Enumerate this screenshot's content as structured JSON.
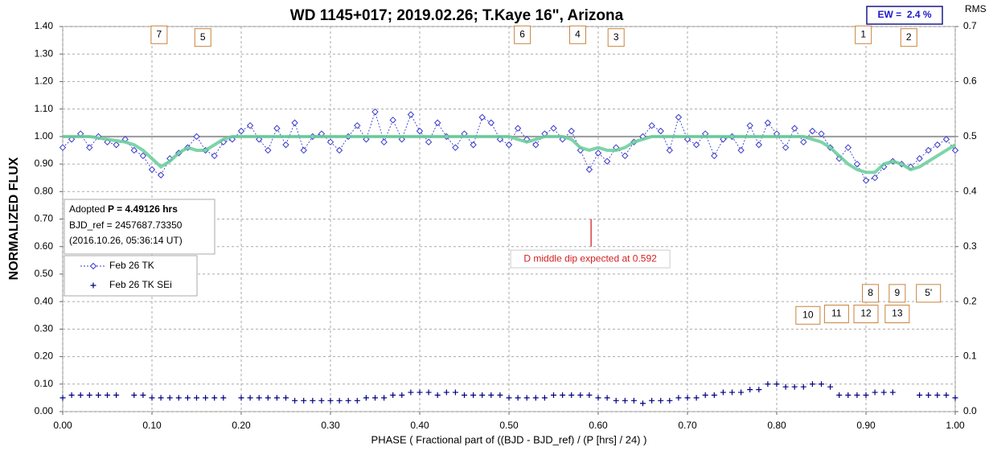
{
  "chart_data": {
    "type": "scatter",
    "title": "WD 1145+017; 2019.02.26; T.Kaye 16\", Arizona",
    "x_label": "PHASE ( Fractional part of ((BJD - BJD_ref) / (P [hrs] / 24) )",
    "y_label": "NORMALIZED FLUX",
    "y2_label": "RMS i",
    "ew_label": "EW =  2.4 %",
    "xlim": [
      0,
      1
    ],
    "xticks": [
      {
        "value": 0,
        "label": "0.00"
      },
      {
        "value": 0.1,
        "label": "0.10"
      },
      {
        "value": 0.2,
        "label": "0.20"
      },
      {
        "value": 0.3,
        "label": "0.30"
      },
      {
        "value": 0.4,
        "label": "0.40"
      },
      {
        "value": 0.5,
        "label": "0.50"
      },
      {
        "value": 0.6,
        "label": "0.60"
      },
      {
        "value": 0.7,
        "label": "0.70"
      },
      {
        "value": 0.8,
        "label": "0.80"
      },
      {
        "value": 0.9,
        "label": "0.90"
      },
      {
        "value": 1,
        "label": "1.00"
      }
    ],
    "ylim": [
      0,
      1.4
    ],
    "yticks": [
      {
        "value": 0,
        "label": "0.00"
      },
      {
        "value": 0.1,
        "label": "0.10"
      },
      {
        "value": 0.2,
        "label": "0.20"
      },
      {
        "value": 0.3,
        "label": "0.30"
      },
      {
        "value": 0.4,
        "label": "0.40"
      },
      {
        "value": 0.5,
        "label": "0.50"
      },
      {
        "value": 0.6,
        "label": "0.60"
      },
      {
        "value": 0.7,
        "label": "0.70"
      },
      {
        "value": 0.8,
        "label": "0.80"
      },
      {
        "value": 0.9,
        "label": "0.90"
      },
      {
        "value": 1,
        "label": "1.00"
      },
      {
        "value": 1.1,
        "label": "1.10"
      },
      {
        "value": 1.2,
        "label": "1.20"
      },
      {
        "value": 1.3,
        "label": "1.30"
      },
      {
        "value": 1.4,
        "label": "1.40"
      }
    ],
    "y2lim": [
      0,
      0.7
    ],
    "y2ticks": [
      {
        "value": 0,
        "label": "0.0"
      },
      0.1,
      0.2,
      0.3,
      0.4,
      0.5,
      0.6,
      0.7
    ],
    "grid": true,
    "reference_line": 1,
    "legend": "left",
    "x": [
      0,
      0.01,
      0.02,
      0.03,
      0.04,
      0.05,
      0.06,
      0.07,
      0.08,
      0.09,
      0.1,
      0.11,
      0.12,
      0.13,
      0.14,
      0.15,
      0.16,
      0.17,
      0.18,
      0.19,
      0.2,
      0.21,
      0.22,
      0.23,
      0.24,
      0.25,
      0.26,
      0.27,
      0.28,
      0.29,
      0.3,
      0.31,
      0.32,
      0.33,
      0.34,
      0.35,
      0.36,
      0.37,
      0.38,
      0.39,
      0.4,
      0.41,
      0.42,
      0.43,
      0.44,
      0.45,
      0.46,
      0.47,
      0.48,
      0.49,
      0.5,
      0.51,
      0.52,
      0.53,
      0.54,
      0.55,
      0.56,
      0.57,
      0.58,
      0.59,
      0.6,
      0.61,
      0.62,
      0.63,
      0.64,
      0.65,
      0.66,
      0.67,
      0.68,
      0.69,
      0.7,
      0.71,
      0.72,
      0.73,
      0.74,
      0.75,
      0.76,
      0.77,
      0.78,
      0.79,
      0.8,
      0.81,
      0.82,
      0.83,
      0.84,
      0.85,
      0.86,
      0.87,
      0.88,
      0.89,
      0.9,
      0.91,
      0.92,
      0.93,
      0.94,
      0.95,
      0.96,
      0.97,
      0.98,
      0.99,
      1
    ],
    "series": [
      {
        "name": "Feb 26 TK",
        "color": "#3a3acc",
        "marker": "diamond",
        "line": "dashed",
        "values": [
          0.96,
          0.99,
          1.01,
          0.96,
          1.0,
          0.98,
          0.97,
          0.99,
          0.95,
          0.93,
          0.88,
          0.86,
          0.92,
          0.94,
          0.96,
          1.0,
          0.95,
          0.93,
          0.98,
          0.99,
          1.02,
          1.04,
          0.99,
          0.95,
          1.03,
          0.97,
          1.05,
          0.95,
          1.0,
          1.01,
          0.98,
          0.95,
          1.0,
          1.04,
          0.99,
          1.09,
          0.98,
          1.06,
          0.99,
          1.08,
          1.02,
          0.98,
          1.05,
          1.0,
          0.96,
          1.01,
          0.97,
          1.07,
          1.05,
          0.99,
          0.97,
          1.03,
          0.99,
          0.97,
          1.01,
          1.03,
          0.99,
          1.02,
          0.95,
          0.88,
          0.94,
          0.91,
          0.96,
          0.93,
          0.98,
          1.0,
          1.04,
          1.02,
          0.95,
          1.07,
          0.99,
          0.97,
          1.01,
          0.93,
          0.99,
          1.0,
          0.95,
          1.04,
          0.97,
          1.05,
          1.01,
          0.96,
          1.03,
          0.98,
          1.02,
          1.01,
          0.96,
          0.92,
          0.96,
          0.9,
          0.84,
          0.85,
          0.89,
          0.91,
          0.9,
          0.89,
          0.92,
          0.95,
          0.97,
          0.99,
          0.95
        ]
      },
      {
        "color": "#66cc99",
        "marker": "none",
        "line": "thick",
        "values": [
          1.0,
          1.0,
          1.0,
          1.0,
          0.995,
          0.99,
          0.985,
          0.98,
          0.97,
          0.95,
          0.92,
          0.89,
          0.91,
          0.94,
          0.96,
          0.95,
          0.95,
          0.97,
          0.99,
          1.0,
          1.0,
          1.0,
          1.0,
          1.0,
          1.0,
          1.0,
          1.0,
          1.0,
          1.0,
          1.0,
          1.0,
          1.0,
          1.0,
          1.0,
          1.0,
          1.0,
          1.0,
          1.0,
          1.0,
          1.0,
          1.0,
          1.0,
          1.0,
          1.0,
          1.0,
          1.0,
          1.0,
          1.0,
          1.0,
          1.0,
          1.0,
          0.99,
          0.98,
          0.99,
          1.0,
          1.0,
          1.0,
          0.99,
          0.96,
          0.95,
          0.96,
          0.95,
          0.95,
          0.96,
          0.98,
          0.99,
          1.0,
          1.0,
          1.0,
          1.0,
          1.0,
          1.0,
          1.0,
          1.0,
          1.0,
          1.0,
          1.0,
          1.0,
          1.0,
          1.0,
          1.0,
          1.0,
          1.0,
          1.0,
          0.99,
          0.98,
          0.96,
          0.93,
          0.9,
          0.88,
          0.87,
          0.87,
          0.9,
          0.91,
          0.9,
          0.88,
          0.89,
          0.91,
          0.93,
          0.95,
          0.97
        ]
      },
      {
        "name": "Feb 26 TK SEi",
        "color": "#000080",
        "marker": "plus",
        "line": "none",
        "values": [
          0.05,
          0.06,
          0.06,
          0.06,
          0.06,
          0.06,
          0.06,
          null,
          0.06,
          0.06,
          0.05,
          0.05,
          0.05,
          0.05,
          0.05,
          0.05,
          0.05,
          0.05,
          0.05,
          null,
          0.05,
          0.05,
          0.05,
          0.05,
          0.05,
          0.05,
          0.04,
          0.04,
          0.04,
          0.04,
          0.04,
          0.04,
          0.04,
          0.04,
          0.05,
          0.05,
          0.05,
          0.06,
          0.06,
          0.07,
          0.07,
          0.07,
          0.06,
          0.07,
          0.07,
          0.06,
          0.06,
          0.06,
          0.06,
          0.06,
          0.05,
          0.05,
          0.05,
          0.05,
          0.05,
          0.06,
          0.06,
          0.06,
          0.06,
          0.06,
          0.05,
          0.05,
          0.04,
          0.04,
          0.04,
          0.03,
          0.04,
          0.04,
          0.04,
          0.05,
          0.05,
          0.05,
          0.06,
          0.06,
          0.07,
          0.07,
          0.07,
          0.08,
          0.08,
          0.1,
          0.1,
          0.09,
          0.09,
          0.09,
          0.1,
          0.1,
          0.09,
          0.06,
          0.06,
          0.06,
          0.06,
          0.07,
          0.07,
          0.07,
          null,
          null,
          0.06,
          0.06,
          0.06,
          0.06,
          0.05
        ]
      }
    ],
    "annotations": [
      {
        "text": "7",
        "x": 0.108,
        "y": 1.37
      },
      {
        "text": "5",
        "x": 0.157,
        "y": 1.36
      },
      {
        "text": "6",
        "x": 0.515,
        "y": 1.37
      },
      {
        "text": "4",
        "x": 0.577,
        "y": 1.37
      },
      {
        "text": "3",
        "x": 0.62,
        "y": 1.36
      },
      {
        "text": "1",
        "x": 0.897,
        "y": 1.37
      },
      {
        "text": "2",
        "x": 0.948,
        "y": 1.36
      },
      {
        "text": "8",
        "x": 0.905,
        "y": 0.43
      },
      {
        "text": "9",
        "x": 0.935,
        "y": 0.43
      },
      {
        "text": "5'",
        "x": 0.97,
        "y": 0.43
      },
      {
        "text": "10",
        "x": 0.835,
        "y": 0.35
      },
      {
        "text": "11",
        "x": 0.867,
        "y": 0.355
      },
      {
        "text": "12",
        "x": 0.9,
        "y": 0.355
      },
      {
        "text": "13",
        "x": 0.935,
        "y": 0.355
      }
    ],
    "dip_marker": {
      "label": "D middle dip expected at 0.592",
      "x": 0.592
    },
    "info": {
      "prefix": "Adopted ",
      "period": "P = 4.49126 hrs",
      "ref": "BJD_ref = 2457687.73350",
      "date": "(2016.10.26, 05:36:14 UT)"
    }
  }
}
